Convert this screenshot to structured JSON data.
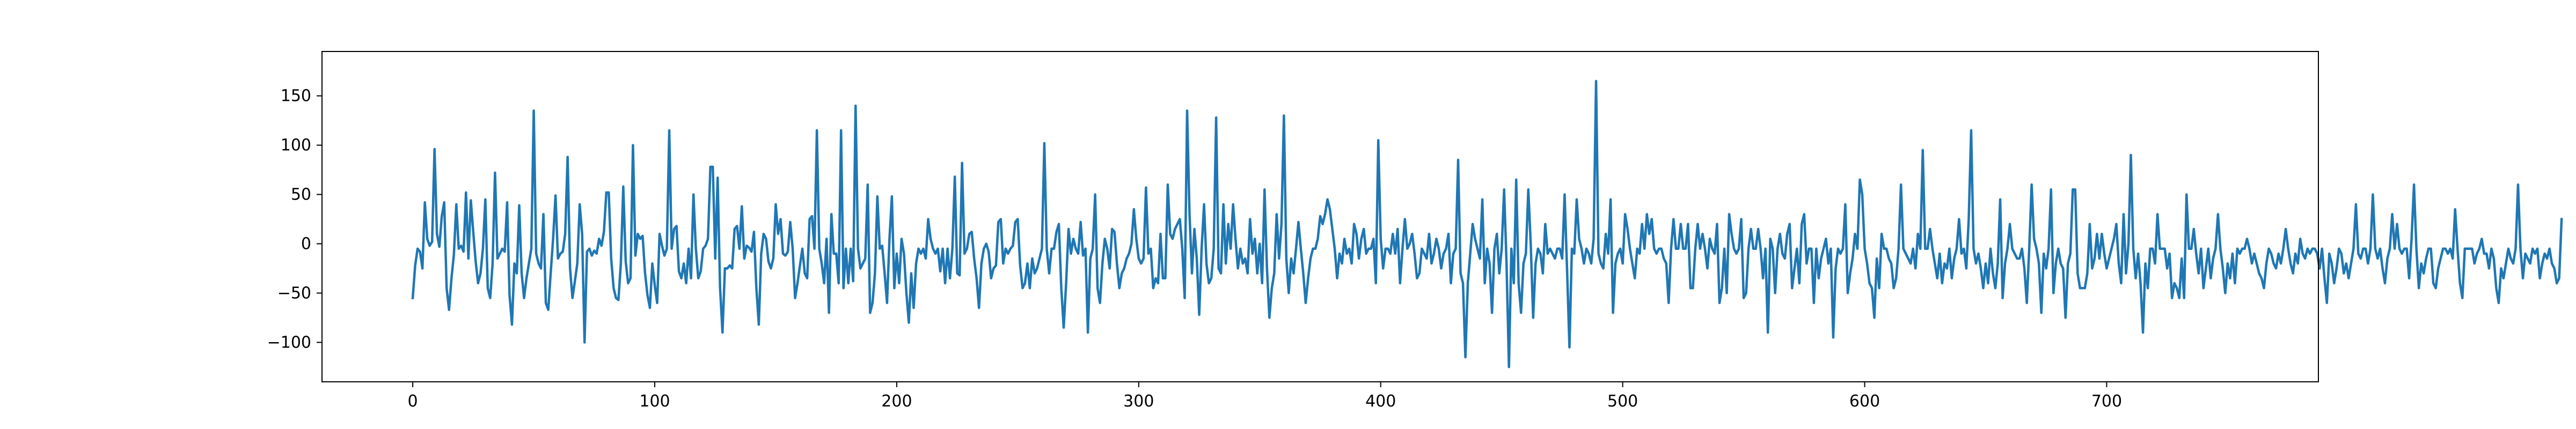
{
  "chart_data": {
    "type": "line",
    "title": "",
    "xlabel": "",
    "ylabel": "",
    "xlim": [
      -37.5,
      787.5
    ],
    "ylim": [
      -140,
      195
    ],
    "grid": false,
    "legend": "none",
    "x_ticks": [
      0,
      100,
      200,
      300,
      400,
      500,
      600,
      700
    ],
    "x_tick_labels": [
      "0",
      "100",
      "200",
      "300",
      "400",
      "500",
      "600",
      "700"
    ],
    "y_ticks": [
      -100,
      -50,
      0,
      50,
      100,
      150
    ],
    "y_tick_labels": [
      "−100",
      "−50",
      "0",
      "50",
      "100",
      "150"
    ],
    "series": [
      {
        "color": "#1f77b4",
        "x_start": 0,
        "x_step": 1,
        "values": [
          -55,
          -22,
          -5,
          -8,
          -25,
          42,
          5,
          -2,
          2,
          96,
          10,
          -3,
          28,
          42,
          -45,
          -67,
          -35,
          -11,
          40,
          -5,
          -2,
          -8,
          52,
          -15,
          44,
          12,
          -18,
          -40,
          -30,
          -5,
          45,
          -45,
          -55,
          -20,
          72,
          -15,
          -10,
          -5,
          -8,
          42,
          -52,
          -82,
          -20,
          -30,
          39,
          -30,
          -55,
          -35,
          -20,
          -5,
          135,
          -10,
          -20,
          -25,
          30,
          -60,
          -67,
          -30,
          5,
          49,
          -15,
          -10,
          -8,
          10,
          88,
          -25,
          -55,
          -38,
          -20,
          40,
          10,
          -100,
          -8,
          -5,
          -12,
          -7,
          -10,
          5,
          -2,
          12,
          52,
          52,
          -15,
          -45,
          -55,
          -57,
          -20,
          58,
          -18,
          -40,
          -35,
          100,
          -12,
          10,
          5,
          8,
          -30,
          -52,
          -65,
          -20,
          -42,
          -60,
          10,
          -2,
          -12,
          -5,
          115,
          -5,
          15,
          18,
          -28,
          -35,
          -20,
          -40,
          -5,
          -35,
          50,
          -5,
          -35,
          -28,
          -5,
          -2,
          5,
          78,
          78,
          -15,
          67,
          -45,
          -90,
          -25,
          -25,
          -22,
          -25,
          15,
          18,
          -5,
          38,
          -15,
          -2,
          -4,
          -8,
          12,
          -45,
          -82,
          -10,
          10,
          5,
          -18,
          -25,
          -15,
          40,
          10,
          25,
          -10,
          -12,
          -8,
          22,
          -5,
          -55,
          -40,
          -22,
          -5,
          -30,
          -35,
          25,
          28,
          -5,
          115,
          -5,
          -20,
          -40,
          5,
          -70,
          30,
          -10,
          -10,
          -40,
          115,
          -45,
          -5,
          -40,
          -5,
          -38,
          140,
          -5,
          -25,
          -20,
          -15,
          60,
          -70,
          -60,
          -30,
          48,
          -5,
          -2,
          -30,
          -60,
          5,
          48,
          -45,
          -10,
          -40,
          5,
          -10,
          -50,
          -80,
          -30,
          -65,
          -20,
          -5,
          -10,
          -5,
          -15,
          25,
          5,
          -5,
          -10,
          -5,
          -28,
          -5,
          -40,
          -5,
          -35,
          -5,
          68,
          -30,
          -32,
          82,
          -10,
          -5,
          10,
          12,
          -15,
          -35,
          -65,
          -20,
          -5,
          0,
          -8,
          -35,
          -25,
          -22,
          22,
          25,
          -20,
          -5,
          -10,
          -5,
          -2,
          22,
          25,
          -22,
          -45,
          -40,
          -20,
          -45,
          -15,
          -30,
          -25,
          -15,
          -5,
          102,
          -5,
          -30,
          -5,
          -5,
          12,
          20,
          -45,
          -85,
          -40,
          15,
          -10,
          5,
          -5,
          -10,
          22,
          -12,
          -5,
          -90,
          -15,
          -5,
          50,
          -45,
          -60,
          -20,
          5,
          -5,
          -25,
          15,
          12,
          -20,
          -45,
          -30,
          -25,
          -15,
          -10,
          0,
          35,
          5,
          -15,
          -20,
          -15,
          57,
          -10,
          -5,
          -45,
          -35,
          -40,
          10,
          -35,
          -35,
          60,
          10,
          5,
          15,
          20,
          25,
          -5,
          -55,
          135,
          30,
          -30,
          15,
          -15,
          -72,
          -5,
          40,
          -20,
          -40,
          -35,
          -5,
          128,
          -25,
          -30,
          40,
          -20,
          20,
          -5,
          40,
          5,
          -25,
          -5,
          -20,
          -15,
          -30,
          25,
          -10,
          5,
          -30,
          0,
          -40,
          55,
          -25,
          -75,
          -45,
          -30,
          30,
          -15,
          20,
          130,
          -15,
          -50,
          -15,
          -30,
          -5,
          22,
          -5,
          -30,
          -60,
          -35,
          -15,
          -5,
          -5,
          5,
          28,
          20,
          30,
          45,
          35,
          15,
          -5,
          -35,
          -10,
          -20,
          5,
          -10,
          -5,
          -20,
          20,
          10,
          -15,
          5,
          15,
          -10,
          -5,
          -5,
          5,
          -40,
          105,
          5,
          -25,
          -5,
          -5,
          -10,
          10,
          -10,
          15,
          -40,
          -5,
          25,
          -5,
          0,
          10,
          -10,
          -35,
          -30,
          -5,
          -10,
          -15,
          10,
          -20,
          -10,
          5,
          -5,
          -25,
          -10,
          -5,
          10,
          -40,
          -10,
          -5,
          85,
          -30,
          -40,
          -115,
          -40,
          -10,
          20,
          5,
          -5,
          -15,
          45,
          -40,
          -5,
          -20,
          -70,
          -5,
          10,
          -30,
          -5,
          55,
          -20,
          -125,
          -5,
          -40,
          65,
          -40,
          -70,
          -20,
          -10,
          55,
          0,
          -75,
          -20,
          -5,
          -10,
          -30,
          20,
          -10,
          -5,
          -10,
          -15,
          -5,
          -5,
          -15,
          50,
          -25,
          -105,
          -5,
          -10,
          45,
          5,
          -5,
          -20,
          -5,
          -10,
          -20,
          5,
          165,
          -10,
          -20,
          -25,
          10,
          -10,
          45,
          -70,
          -20,
          -10,
          -5,
          -20,
          30,
          15,
          -5,
          -20,
          -35,
          -5,
          -10,
          20,
          -5,
          30,
          10,
          25,
          -5,
          -10,
          -5,
          -5,
          -15,
          -20,
          -60,
          -5,
          25,
          -5,
          -5,
          20,
          -5,
          -5,
          20,
          -45,
          -45,
          -5,
          20,
          -5,
          10,
          -5,
          -25,
          5,
          -5,
          -10,
          20,
          -60,
          -45,
          -5,
          -50,
          30,
          10,
          -5,
          -10,
          -5,
          25,
          -55,
          -50,
          -5,
          15,
          -5,
          -5,
          15,
          -5,
          -35,
          -5,
          -90,
          5,
          -5,
          -50,
          -5,
          10,
          -10,
          -15,
          10,
          20,
          -45,
          -25,
          -5,
          -40,
          20,
          30,
          -20,
          -5,
          -5,
          -60,
          -5,
          -35,
          -15,
          -5,
          5,
          -20,
          -5,
          -95,
          -25,
          -5,
          -10,
          -5,
          40,
          -50,
          -30,
          -15,
          10,
          -5,
          65,
          50,
          -5,
          -20,
          -40,
          -45,
          -75,
          -15,
          -45,
          10,
          -5,
          -5,
          -15,
          -20,
          -45,
          -35,
          -5,
          60,
          -5,
          -10,
          -15,
          -20,
          -5,
          -25,
          10,
          -5,
          95,
          -5,
          -5,
          15,
          -5,
          -20,
          -35,
          -10,
          -40,
          -20,
          -25,
          -5,
          -35,
          -15,
          -5,
          25,
          -10,
          -5,
          -25,
          25,
          115,
          -5,
          -20,
          -10,
          -25,
          -45,
          -20,
          -40,
          -5,
          -30,
          -45,
          -20,
          45,
          -55,
          -20,
          -5,
          20,
          -5,
          -10,
          -15,
          -15,
          -5,
          -25,
          -60,
          -5,
          60,
          5,
          -5,
          -20,
          -70,
          -10,
          -25,
          -5,
          55,
          -50,
          -20,
          -5,
          -20,
          -25,
          -75,
          -20,
          -10,
          55,
          55,
          -30,
          -45,
          -45,
          -45,
          -30,
          20,
          -25,
          -15,
          10,
          -15,
          10,
          -10,
          -25,
          -15,
          -5,
          5,
          20,
          -20,
          -40,
          30,
          -30,
          0,
          90,
          -5,
          -35,
          -10,
          -40,
          -90,
          -20,
          -45,
          -5,
          -5,
          -20,
          30,
          -5,
          -5,
          -5,
          -25,
          -10,
          -55,
          -40,
          -45,
          -55,
          -15,
          -55,
          50,
          -5,
          -5,
          15,
          -10,
          -30,
          -5,
          -45,
          -25,
          -5,
          -35,
          -15,
          -5,
          30,
          -5,
          -25,
          -50,
          -20,
          -35,
          -10,
          -40,
          -5,
          -10,
          -5,
          -5,
          5,
          -5,
          -20,
          -10,
          -20,
          -30,
          -35,
          -45,
          -20,
          -5,
          -10,
          -20,
          -25,
          -10,
          -20,
          -5,
          15,
          -5,
          -20,
          -30,
          -10,
          -20,
          5,
          -10,
          -15,
          -5,
          -10,
          -5,
          -5,
          -10,
          -25,
          -5,
          -35,
          -60,
          -10,
          -20,
          -40,
          -25,
          -5,
          -10,
          -30,
          -20,
          -35,
          -20,
          -5,
          40,
          -10,
          -15,
          -5,
          -5,
          -20,
          -5,
          50,
          -5,
          -15,
          -5,
          -25,
          -40,
          -15,
          -5,
          30,
          -5,
          20,
          -5,
          -10,
          -5,
          -5,
          -35,
          5,
          60,
          -5,
          -45,
          -20,
          -30,
          -15,
          -5,
          -5,
          -40,
          -45,
          -25,
          -15,
          -5,
          -5,
          -10,
          -5,
          -15,
          35,
          -5,
          -40,
          -55,
          -5,
          -5,
          -5,
          -5,
          -20,
          -10,
          -5,
          5,
          -10,
          -10,
          -25,
          -5,
          -15,
          -45,
          -60,
          -25,
          -35,
          -20,
          -5,
          -15,
          -20,
          -5,
          60,
          -5,
          -35,
          -10,
          -15,
          -20,
          -5,
          -10,
          -5,
          -35,
          -20,
          -10,
          -15,
          -5,
          -20,
          -25,
          -40,
          -35,
          25
        ]
      }
    ]
  }
}
